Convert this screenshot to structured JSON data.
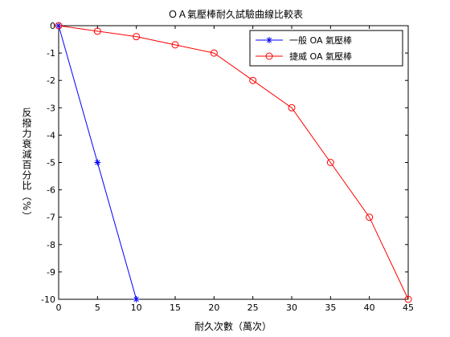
{
  "chart_data": {
    "type": "line",
    "title": "ＯＡ氣壓棒耐久試驗曲線比較表",
    "xlabel": "耐久次數（萬次）",
    "ylabel": "反撥力衰減百分比（%）",
    "xlim": [
      0,
      45
    ],
    "ylim": [
      -10,
      0
    ],
    "xticks": [
      0,
      5,
      10,
      15,
      20,
      25,
      30,
      35,
      40,
      45
    ],
    "yticks": [
      0,
      -1,
      -2,
      -3,
      -4,
      -5,
      -6,
      -7,
      -8,
      -9,
      -10
    ],
    "grid": false,
    "legend_position": "top-right",
    "series": [
      {
        "name": "一般 OA 氣壓棒",
        "color": "#0000ff",
        "marker": "asterisk",
        "x": [
          0,
          5,
          10
        ],
        "y": [
          0,
          -5,
          -10
        ]
      },
      {
        "name": "捷威 OA 氣壓棒",
        "color": "#ff0000",
        "marker": "circle",
        "x": [
          0,
          5,
          10,
          15,
          20,
          25,
          30,
          35,
          40,
          45
        ],
        "y": [
          0,
          -0.2,
          -0.4,
          -0.7,
          -1,
          -2,
          -3,
          -5,
          -7,
          -10
        ]
      }
    ]
  }
}
